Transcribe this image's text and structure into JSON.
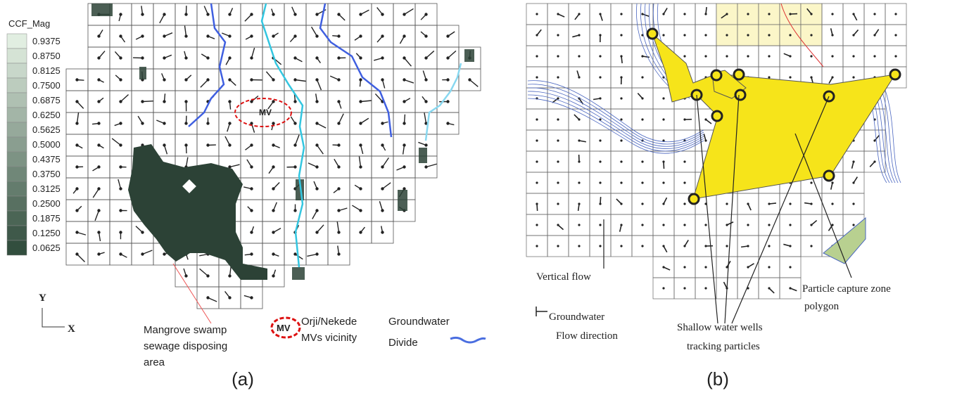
{
  "panel_a": {
    "legend": {
      "title": "CCF_Mag",
      "labels": [
        "0.9375",
        "0.8750",
        "0.8125",
        "0.7500",
        "0.6875",
        "0.6250",
        "0.5625",
        "0.5000",
        "0.4375",
        "0.3750",
        "0.3125",
        "0.2500",
        "0.1875",
        "0.1250",
        "0.0625"
      ]
    },
    "axis_labels": {
      "y": "Y",
      "x": "X"
    },
    "map_label": "MV",
    "mangrove_label": [
      "Mangrove swamp",
      "sewage disposing",
      "area"
    ],
    "mv_legend": {
      "symbol": "MV",
      "lines": [
        "Orji/Nekede",
        "MVs vicinity"
      ]
    },
    "divide_legend": [
      "Groundwater",
      "Divide"
    ],
    "caption": "(a)"
  },
  "panel_b": {
    "vertical_flow": "Vertical flow",
    "flow_direction": [
      "Groundwater",
      "Flow direction"
    ],
    "wells": [
      "Shallow water wells",
      "tracking particles"
    ],
    "capture_zone": [
      "Particle capture zone",
      "polygon"
    ],
    "caption": "(b)"
  }
}
